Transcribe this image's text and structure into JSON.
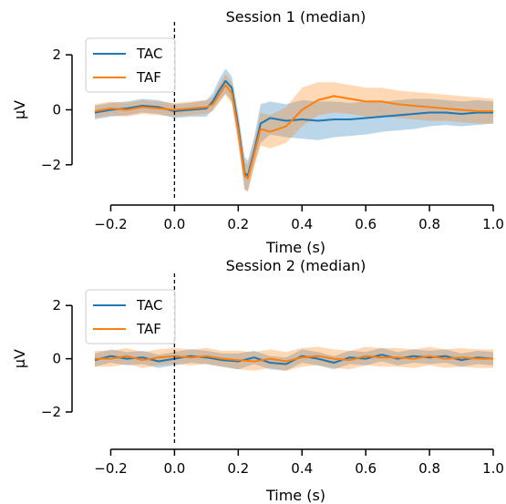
{
  "chart_data": [
    {
      "type": "line",
      "title": "Session 1 (median)",
      "xlabel": "Time (s)",
      "ylabel": "µV",
      "xlim": [
        -0.25,
        1.0
      ],
      "ylim": [
        -3.3,
        3.0
      ],
      "xticks": [
        "−0.2",
        "0.0",
        "0.2",
        "0.4",
        "0.6",
        "0.8",
        "1.0"
      ],
      "xtick_values": [
        -0.2,
        0.0,
        0.2,
        0.4,
        0.6,
        0.8,
        1.0
      ],
      "yticks": [
        "2",
        "0",
        "−2"
      ],
      "ytick_values": [
        2,
        0,
        -2
      ],
      "vline_x": 0.0,
      "legend": "top-left",
      "series": [
        {
          "name": "TAC",
          "color": "#1f77b4",
          "x": [
            -0.25,
            -0.2,
            -0.15,
            -0.1,
            -0.05,
            0.0,
            0.05,
            0.1,
            0.12,
            0.14,
            0.16,
            0.18,
            0.2,
            0.22,
            0.23,
            0.25,
            0.27,
            0.3,
            0.35,
            0.4,
            0.45,
            0.5,
            0.55,
            0.6,
            0.65,
            0.7,
            0.75,
            0.8,
            0.85,
            0.9,
            0.95,
            1.0
          ],
          "y": [
            -0.1,
            0.0,
            0.05,
            0.15,
            0.1,
            -0.05,
            0.0,
            0.05,
            0.3,
            0.7,
            1.05,
            0.8,
            -0.6,
            -2.3,
            -2.4,
            -1.5,
            -0.5,
            -0.3,
            -0.4,
            -0.35,
            -0.4,
            -0.35,
            -0.35,
            -0.3,
            -0.25,
            -0.2,
            -0.15,
            -0.1,
            -0.1,
            -0.15,
            -0.1,
            -0.1
          ],
          "lower": [
            -0.35,
            -0.25,
            -0.2,
            -0.1,
            -0.15,
            -0.3,
            -0.25,
            -0.25,
            0.0,
            0.3,
            0.6,
            0.3,
            -1.1,
            -2.9,
            -2.95,
            -2.0,
            -1.2,
            -0.9,
            -1.0,
            -1.05,
            -1.1,
            -1.0,
            -0.95,
            -0.9,
            -0.8,
            -0.75,
            -0.7,
            -0.6,
            -0.55,
            -0.6,
            -0.55,
            -0.5
          ],
          "upper": [
            0.15,
            0.25,
            0.3,
            0.4,
            0.35,
            0.2,
            0.25,
            0.35,
            0.6,
            1.1,
            1.5,
            1.2,
            -0.1,
            -1.7,
            -1.85,
            -1.0,
            0.2,
            0.3,
            0.2,
            0.35,
            0.3,
            0.3,
            0.25,
            0.3,
            0.3,
            0.35,
            0.4,
            0.4,
            0.35,
            0.3,
            0.35,
            0.3
          ]
        },
        {
          "name": "TAF",
          "color": "#ff7f0e",
          "x": [
            -0.25,
            -0.2,
            -0.15,
            -0.1,
            -0.05,
            0.0,
            0.05,
            0.1,
            0.12,
            0.14,
            0.16,
            0.18,
            0.2,
            0.22,
            0.23,
            0.25,
            0.27,
            0.3,
            0.35,
            0.4,
            0.45,
            0.5,
            0.55,
            0.6,
            0.65,
            0.7,
            0.75,
            0.8,
            0.85,
            0.9,
            0.95,
            1.0
          ],
          "y": [
            -0.05,
            0.05,
            0.0,
            0.1,
            0.05,
            0.0,
            0.05,
            0.1,
            0.2,
            0.55,
            0.9,
            0.6,
            -0.8,
            -2.4,
            -2.5,
            -1.6,
            -0.7,
            -0.8,
            -0.6,
            0.0,
            0.35,
            0.5,
            0.4,
            0.3,
            0.3,
            0.2,
            0.15,
            0.1,
            0.05,
            0.0,
            -0.05,
            -0.05
          ],
          "lower": [
            -0.3,
            -0.2,
            -0.25,
            -0.15,
            -0.2,
            -0.25,
            -0.2,
            -0.15,
            -0.05,
            0.25,
            0.55,
            0.2,
            -1.3,
            -2.9,
            -3.0,
            -2.1,
            -1.3,
            -1.4,
            -1.2,
            -0.6,
            -0.2,
            -0.1,
            -0.15,
            -0.25,
            -0.25,
            -0.3,
            -0.35,
            -0.4,
            -0.4,
            -0.45,
            -0.5,
            -0.5
          ],
          "upper": [
            0.2,
            0.3,
            0.25,
            0.35,
            0.3,
            0.25,
            0.3,
            0.35,
            0.45,
            0.9,
            1.3,
            1.0,
            -0.3,
            -1.9,
            -2.0,
            -1.1,
            -0.1,
            -0.2,
            0.1,
            0.8,
            1.0,
            1.0,
            0.9,
            0.8,
            0.8,
            0.7,
            0.65,
            0.6,
            0.55,
            0.5,
            0.45,
            0.4
          ]
        }
      ]
    },
    {
      "type": "line",
      "title": "Session 2 (median)",
      "xlabel": "Time (s)",
      "ylabel": "µV",
      "xlim": [
        -0.25,
        1.0
      ],
      "ylim": [
        -3.3,
        3.0
      ],
      "xticks": [
        "−0.2",
        "0.0",
        "0.2",
        "0.4",
        "0.6",
        "0.8",
        "1.0"
      ],
      "xtick_values": [
        -0.2,
        0.0,
        0.2,
        0.4,
        0.6,
        0.8,
        1.0
      ],
      "yticks": [
        "2",
        "0",
        "−2"
      ],
      "ytick_values": [
        2,
        0,
        -2
      ],
      "vline_x": 0.0,
      "legend": "top-left",
      "series": [
        {
          "name": "TAC",
          "color": "#1f77b4",
          "x": [
            -0.25,
            -0.2,
            -0.15,
            -0.1,
            -0.05,
            0.0,
            0.05,
            0.1,
            0.15,
            0.2,
            0.25,
            0.3,
            0.35,
            0.4,
            0.45,
            0.5,
            0.55,
            0.6,
            0.65,
            0.7,
            0.75,
            0.8,
            0.85,
            0.9,
            0.95,
            1.0
          ],
          "y": [
            -0.05,
            0.1,
            0.0,
            0.05,
            -0.1,
            0.0,
            0.1,
            0.05,
            -0.05,
            -0.1,
            0.05,
            -0.15,
            -0.2,
            0.1,
            0.0,
            -0.15,
            0.05,
            0.0,
            0.15,
            0.0,
            0.1,
            0.05,
            0.1,
            -0.05,
            0.05,
            0.0
          ],
          "lower": [
            -0.3,
            -0.15,
            -0.25,
            -0.2,
            -0.35,
            -0.25,
            -0.15,
            -0.2,
            -0.3,
            -0.4,
            -0.2,
            -0.4,
            -0.45,
            -0.15,
            -0.25,
            -0.4,
            -0.2,
            -0.25,
            -0.1,
            -0.25,
            -0.15,
            -0.2,
            -0.15,
            -0.3,
            -0.2,
            -0.25
          ],
          "upper": [
            0.2,
            0.35,
            0.25,
            0.3,
            0.15,
            0.25,
            0.35,
            0.3,
            0.2,
            0.2,
            0.3,
            0.1,
            0.05,
            0.35,
            0.25,
            0.1,
            0.3,
            0.25,
            0.4,
            0.25,
            0.35,
            0.3,
            0.35,
            0.2,
            0.3,
            0.25
          ]
        },
        {
          "name": "TAF",
          "color": "#ff7f0e",
          "x": [
            -0.25,
            -0.2,
            -0.15,
            -0.1,
            -0.05,
            0.0,
            0.05,
            0.1,
            0.15,
            0.2,
            0.25,
            0.3,
            0.35,
            0.4,
            0.45,
            0.5,
            0.55,
            0.6,
            0.65,
            0.7,
            0.75,
            0.8,
            0.85,
            0.9,
            0.95,
            1.0
          ],
          "y": [
            0.0,
            0.0,
            0.1,
            -0.05,
            0.05,
            0.1,
            0.05,
            0.1,
            0.0,
            -0.05,
            -0.1,
            0.0,
            -0.1,
            0.05,
            0.1,
            0.0,
            -0.05,
            0.1,
            0.05,
            0.05,
            0.0,
            0.1,
            0.0,
            0.05,
            0.0,
            0.0
          ],
          "lower": [
            -0.3,
            -0.3,
            -0.2,
            -0.35,
            -0.25,
            -0.2,
            -0.25,
            -0.2,
            -0.3,
            -0.4,
            -0.45,
            -0.35,
            -0.45,
            -0.3,
            -0.25,
            -0.35,
            -0.4,
            -0.25,
            -0.3,
            -0.3,
            -0.35,
            -0.25,
            -0.35,
            -0.3,
            -0.35,
            -0.35
          ],
          "upper": [
            0.3,
            0.3,
            0.4,
            0.25,
            0.35,
            0.4,
            0.35,
            0.4,
            0.3,
            0.3,
            0.25,
            0.35,
            0.25,
            0.4,
            0.45,
            0.35,
            0.3,
            0.45,
            0.4,
            0.4,
            0.35,
            0.45,
            0.35,
            0.4,
            0.35,
            0.35
          ]
        }
      ]
    }
  ]
}
